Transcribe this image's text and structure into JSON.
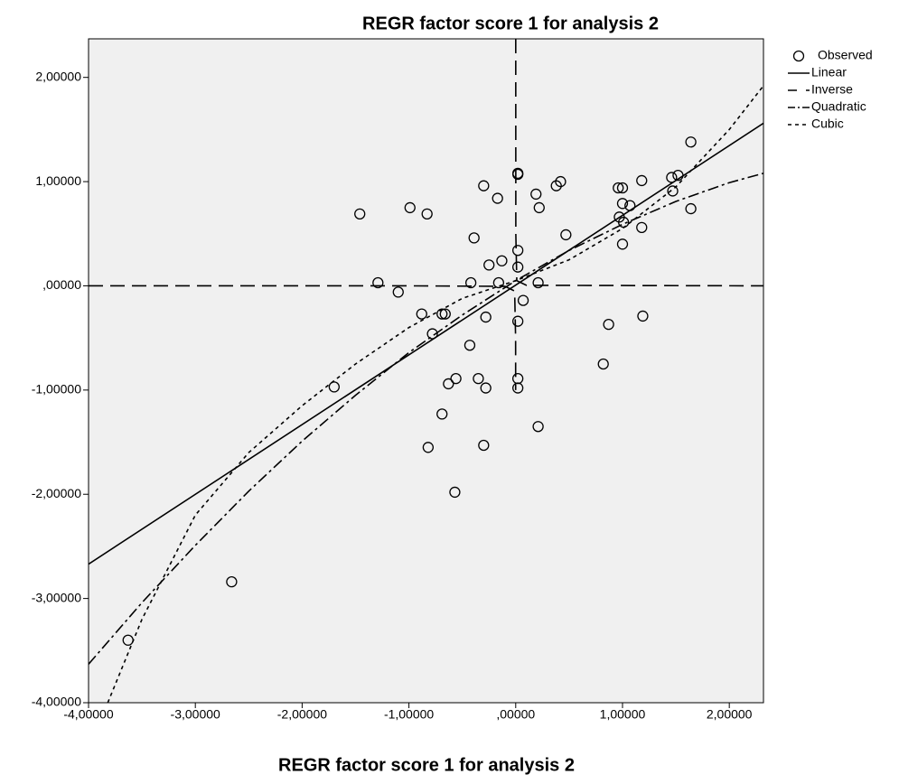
{
  "chart_data": {
    "type": "scatter",
    "title": "REGR factor score   1 for analysis 2",
    "x_label": "REGR factor score   1 for analysis 2",
    "xlim": [
      -4,
      2.32
    ],
    "ylim": [
      -4,
      2.37
    ],
    "xticks": [
      {
        "value": -4,
        "label": "-4,00000"
      },
      {
        "value": -3,
        "label": "-3,00000"
      },
      {
        "value": -2,
        "label": "-2,00000"
      },
      {
        "value": -1,
        "label": "-1,00000"
      },
      {
        "value": 0,
        "label": ",00000"
      },
      {
        "value": 1,
        "label": "1,00000"
      },
      {
        "value": 2,
        "label": "2,00000"
      }
    ],
    "yticks": [
      {
        "value": -4,
        "label": "-4,00000"
      },
      {
        "value": -3,
        "label": "-3,00000"
      },
      {
        "value": -2,
        "label": "-2,00000"
      },
      {
        "value": -1,
        "label": "-1,00000"
      },
      {
        "value": 0,
        "label": ",00000"
      },
      {
        "value": 1,
        "label": "1,00000"
      },
      {
        "value": 2,
        "label": "2,00000"
      }
    ],
    "legend_position": "right",
    "series": [
      {
        "name": "Observed",
        "kind": "scatter",
        "color": "#000000",
        "x": [
          -1.46,
          -0.99,
          -0.83,
          -1.29,
          -1.1,
          -0.88,
          -0.69,
          -0.66,
          -0.78,
          -1.7,
          -0.63,
          -0.56,
          -0.69,
          -0.82,
          -0.57,
          -2.66,
          -3.63,
          -0.39,
          -0.17,
          -0.3,
          0.02,
          0.02,
          -0.25,
          -0.13,
          -0.42,
          -0.16,
          0.02,
          0.02,
          -0.28,
          -0.43,
          -0.35,
          -0.28,
          0.02,
          0.02,
          0.02,
          0.07,
          -0.3,
          0.21,
          0.21,
          0.19,
          0.22,
          0.38,
          0.42,
          0.47,
          0.96,
          1.0,
          1.18,
          1.0,
          1.07,
          0.97,
          1.0,
          1.01,
          1.18,
          0.87,
          0.82,
          1.19,
          1.46,
          1.52,
          1.47,
          1.64,
          1.64
        ],
        "values": [
          0.69,
          0.75,
          0.69,
          0.03,
          -0.06,
          -0.27,
          -0.27,
          -0.27,
          -0.46,
          -0.97,
          -0.94,
          -0.89,
          -1.23,
          -1.55,
          -1.98,
          -2.84,
          -3.4,
          0.46,
          0.84,
          0.96,
          1.08,
          1.07,
          0.2,
          0.24,
          0.03,
          0.03,
          0.34,
          0.18,
          -0.3,
          -0.57,
          -0.89,
          -0.98,
          -0.89,
          -0.98,
          -0.34,
          -0.14,
          -1.53,
          -1.35,
          0.03,
          0.88,
          0.75,
          0.96,
          1.0,
          0.49,
          0.94,
          0.94,
          1.01,
          0.79,
          0.77,
          0.66,
          0.4,
          0.61,
          0.56,
          -0.37,
          -0.75,
          -0.29,
          1.04,
          1.06,
          0.91,
          1.38,
          0.74
        ]
      },
      {
        "name": "Linear",
        "kind": "line",
        "line_style": "solid",
        "color": "#000000",
        "x": [
          -4,
          2.32
        ],
        "values": [
          -2.67,
          1.56
        ]
      },
      {
        "name": "Inverse",
        "kind": "line",
        "line_style": "dashed",
        "color": "#000000",
        "x": [
          -4,
          -1,
          -0.1,
          -0.01,
          -0.001,
          -0.0005,
          0,
          0.0002,
          0.001,
          0.01,
          0.1,
          2.32
        ],
        "values": [
          0,
          0,
          -0.005,
          -0.05,
          -0.5,
          -1,
          null,
          2.37,
          0.5,
          0.05,
          0.005,
          0
        ]
      },
      {
        "name": "Quadratic",
        "kind": "line",
        "line_style": "dashdot",
        "color": "#000000",
        "x": [
          -4,
          -3.5,
          -3,
          -2.5,
          -2,
          -1.5,
          -1,
          -0.5,
          0,
          0.5,
          1,
          1.5,
          2,
          2.32
        ],
        "values": [
          -3.63,
          -3.04,
          -2.49,
          -1.97,
          -1.49,
          -1.05,
          -0.64,
          -0.28,
          0.05,
          0.34,
          0.59,
          0.81,
          0.99,
          1.08
        ]
      },
      {
        "name": "Cubic",
        "kind": "line",
        "line_style": "dotted",
        "color": "#000000",
        "x": [
          -3.82,
          -3.5,
          -3,
          -2.5,
          -2,
          -1.5,
          -1,
          -0.5,
          0,
          0.5,
          1,
          1.5,
          2,
          2.32
        ],
        "values": [
          -4,
          -3.2,
          -2.2,
          -1.6,
          -1.15,
          -0.75,
          -0.4,
          -0.12,
          0.05,
          0.25,
          0.55,
          0.95,
          1.5,
          1.92
        ]
      }
    ]
  }
}
